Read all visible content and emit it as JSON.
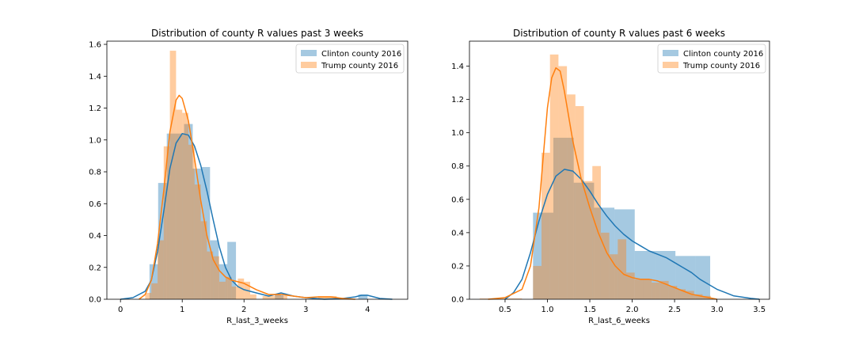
{
  "chart_data": [
    {
      "type": "histogram+kde",
      "title": "Distribution of county R values past 3 weeks",
      "xlabel": "R_last_3_weeks",
      "ylabel": "",
      "xlim": [
        -0.22,
        4.65
      ],
      "ylim": [
        0,
        1.62
      ],
      "xticks": [
        0,
        1,
        2,
        3,
        4
      ],
      "xtick_labels": [
        "0",
        "1",
        "2",
        "3",
        "4"
      ],
      "yticks": [
        0,
        0.2,
        0.4,
        0.6,
        0.8,
        1.0,
        1.2,
        1.4,
        1.6
      ],
      "ytick_labels": [
        "0.0",
        "0.2",
        "0.4",
        "0.6",
        "0.8",
        "1.0",
        "1.2",
        "1.4",
        "1.6"
      ],
      "legend_position": "top-right",
      "grid": false,
      "series": [
        {
          "name": "Clinton county 2016",
          "color": "#1f77b4",
          "hist_bins": [
            {
              "x0": 0.47,
              "x1": 0.61,
              "y": 0.22
            },
            {
              "x0": 0.61,
              "x1": 0.75,
              "y": 0.73
            },
            {
              "x0": 0.75,
              "x1": 0.89,
              "y": 1.04
            },
            {
              "x0": 0.89,
              "x1": 1.03,
              "y": 1.04
            },
            {
              "x0": 1.03,
              "x1": 1.17,
              "y": 1.1
            },
            {
              "x0": 1.17,
              "x1": 1.31,
              "y": 0.82
            },
            {
              "x0": 1.31,
              "x1": 1.45,
              "y": 0.83
            },
            {
              "x0": 1.45,
              "x1": 1.59,
              "y": 0.37
            },
            {
              "x0": 1.59,
              "x1": 1.73,
              "y": 0.22
            },
            {
              "x0": 1.73,
              "x1": 1.87,
              "y": 0.36
            },
            {
              "x0": 2.5,
              "x1": 2.64,
              "y": 0.03
            },
            {
              "x0": 3.85,
              "x1": 4.0,
              "y": 0.03
            }
          ],
          "kde": {
            "x": [
              0.0,
              0.2,
              0.4,
              0.5,
              0.6,
              0.7,
              0.8,
              0.9,
              1.0,
              1.1,
              1.2,
              1.3,
              1.4,
              1.5,
              1.6,
              1.7,
              1.8,
              1.9,
              2.0,
              2.2,
              2.4,
              2.6,
              2.8,
              3.0,
              3.3,
              3.6,
              3.8,
              3.9,
              4.0,
              4.1,
              4.2,
              4.4
            ],
            "y": [
              0.0,
              0.01,
              0.05,
              0.12,
              0.3,
              0.55,
              0.82,
              0.98,
              1.04,
              1.03,
              0.96,
              0.84,
              0.68,
              0.5,
              0.33,
              0.2,
              0.12,
              0.08,
              0.06,
              0.04,
              0.02,
              0.04,
              0.02,
              0.01,
              0.0,
              0.005,
              0.015,
              0.025,
              0.025,
              0.015,
              0.005,
              0.0
            ]
          }
        },
        {
          "name": "Trump county 2016",
          "color": "#ff7f0e",
          "hist_bins": [
            {
              "x0": 0.4,
              "x1": 0.5,
              "y": 0.04
            },
            {
              "x0": 0.5,
              "x1": 0.6,
              "y": 0.1
            },
            {
              "x0": 0.6,
              "x1": 0.7,
              "y": 0.37
            },
            {
              "x0": 0.7,
              "x1": 0.8,
              "y": 0.96
            },
            {
              "x0": 0.8,
              "x1": 0.9,
              "y": 1.56
            },
            {
              "x0": 0.9,
              "x1": 1.0,
              "y": 1.19
            },
            {
              "x0": 1.0,
              "x1": 1.1,
              "y": 1.17
            },
            {
              "x0": 1.1,
              "x1": 1.2,
              "y": 0.97
            },
            {
              "x0": 1.2,
              "x1": 1.3,
              "y": 0.72
            },
            {
              "x0": 1.3,
              "x1": 1.4,
              "y": 0.49
            },
            {
              "x0": 1.4,
              "x1": 1.5,
              "y": 0.3
            },
            {
              "x0": 1.5,
              "x1": 1.6,
              "y": 0.27
            },
            {
              "x0": 1.6,
              "x1": 1.7,
              "y": 0.11
            },
            {
              "x0": 1.7,
              "x1": 1.8,
              "y": 0.14
            },
            {
              "x0": 1.8,
              "x1": 1.9,
              "y": 0.08
            },
            {
              "x0": 1.9,
              "x1": 2.0,
              "y": 0.13
            },
            {
              "x0": 2.0,
              "x1": 2.1,
              "y": 0.11
            },
            {
              "x0": 2.1,
              "x1": 2.2,
              "y": 0.03
            },
            {
              "x0": 2.3,
              "x1": 2.4,
              "y": 0.02
            },
            {
              "x0": 2.4,
              "x1": 2.5,
              "y": 0.02
            },
            {
              "x0": 2.5,
              "x1": 2.6,
              "y": 0.03
            },
            {
              "x0": 2.6,
              "x1": 2.7,
              "y": 0.02
            },
            {
              "x0": 3.2,
              "x1": 3.3,
              "y": 0.02
            },
            {
              "x0": 3.3,
              "x1": 3.4,
              "y": 0.02
            },
            {
              "x0": 3.4,
              "x1": 3.5,
              "y": 0.02
            },
            {
              "x0": 3.5,
              "x1": 3.6,
              "y": 0.01
            }
          ],
          "kde": {
            "x": [
              0.3,
              0.4,
              0.5,
              0.6,
              0.7,
              0.8,
              0.9,
              0.95,
              1.0,
              1.1,
              1.2,
              1.3,
              1.4,
              1.5,
              1.6,
              1.7,
              1.8,
              1.9,
              2.0,
              2.1,
              2.2,
              2.4,
              2.6,
              2.8,
              3.0,
              3.2,
              3.4,
              3.6,
              3.8
            ],
            "y": [
              0.0,
              0.03,
              0.12,
              0.35,
              0.68,
              1.05,
              1.25,
              1.28,
              1.26,
              1.12,
              0.88,
              0.62,
              0.4,
              0.25,
              0.18,
              0.14,
              0.12,
              0.11,
              0.1,
              0.08,
              0.06,
              0.03,
              0.03,
              0.02,
              0.01,
              0.015,
              0.015,
              0.005,
              0.0
            ]
          }
        }
      ]
    },
    {
      "type": "histogram+kde",
      "title": "Distribution of county R values past 6 weeks",
      "xlabel": "R_last_6_weeks",
      "ylabel": "",
      "xlim": [
        0.08,
        3.62
      ],
      "ylim": [
        0,
        1.55
      ],
      "xticks": [
        0.5,
        1.0,
        1.5,
        2.0,
        2.5,
        3.0,
        3.5
      ],
      "xtick_labels": [
        "0.5",
        "1.0",
        "1.5",
        "2.0",
        "2.5",
        "3.0",
        "3.5"
      ],
      "yticks": [
        0,
        0.2,
        0.4,
        0.6,
        0.8,
        1.0,
        1.2,
        1.4
      ],
      "ytick_labels": [
        "0.0",
        "0.2",
        "0.4",
        "0.6",
        "0.8",
        "1.0",
        "1.2",
        "1.4"
      ],
      "legend_position": "top-right",
      "grid": false,
      "series": [
        {
          "name": "Clinton county 2016",
          "color": "#1f77b4",
          "hist_bins": [
            {
              "x0": 0.83,
              "x1": 1.07,
              "y": 0.52
            },
            {
              "x0": 1.07,
              "x1": 1.31,
              "y": 0.97
            },
            {
              "x0": 1.31,
              "x1": 1.55,
              "y": 0.7
            },
            {
              "x0": 1.55,
              "x1": 1.79,
              "y": 0.55
            },
            {
              "x0": 1.79,
              "x1": 2.03,
              "y": 0.54
            },
            {
              "x0": 2.03,
              "x1": 2.27,
              "y": 0.29
            },
            {
              "x0": 2.27,
              "x1": 2.51,
              "y": 0.29
            },
            {
              "x0": 2.51,
              "x1": 2.75,
              "y": 0.26
            },
            {
              "x0": 2.75,
              "x1": 2.92,
              "y": 0.26
            }
          ],
          "kde": {
            "x": [
              0.5,
              0.6,
              0.7,
              0.8,
              0.9,
              1.0,
              1.1,
              1.2,
              1.3,
              1.4,
              1.5,
              1.6,
              1.7,
              1.8,
              1.9,
              2.0,
              2.1,
              2.2,
              2.3,
              2.4,
              2.5,
              2.6,
              2.7,
              2.8,
              2.9,
              3.0,
              3.1,
              3.2,
              3.4,
              3.5
            ],
            "y": [
              0.0,
              0.04,
              0.12,
              0.28,
              0.47,
              0.63,
              0.74,
              0.78,
              0.77,
              0.72,
              0.65,
              0.57,
              0.5,
              0.44,
              0.39,
              0.35,
              0.32,
              0.29,
              0.27,
              0.25,
              0.22,
              0.19,
              0.16,
              0.12,
              0.09,
              0.06,
              0.04,
              0.02,
              0.005,
              0.0
            ]
          }
        },
        {
          "name": "Trump county 2016",
          "color": "#ff7f0e",
          "hist_bins": [
            {
              "x0": 0.2,
              "x1": 0.7,
              "y": 0.005
            },
            {
              "x0": 0.83,
              "x1": 0.93,
              "y": 0.2
            },
            {
              "x0": 0.93,
              "x1": 1.03,
              "y": 0.88
            },
            {
              "x0": 1.03,
              "x1": 1.13,
              "y": 1.47
            },
            {
              "x0": 1.13,
              "x1": 1.23,
              "y": 1.4
            },
            {
              "x0": 1.23,
              "x1": 1.33,
              "y": 1.23
            },
            {
              "x0": 1.33,
              "x1": 1.43,
              "y": 1.16
            },
            {
              "x0": 1.43,
              "x1": 1.53,
              "y": 0.71
            },
            {
              "x0": 1.53,
              "x1": 1.63,
              "y": 0.8
            },
            {
              "x0": 1.63,
              "x1": 1.73,
              "y": 0.4
            },
            {
              "x0": 1.73,
              "x1": 1.83,
              "y": 0.27
            },
            {
              "x0": 1.83,
              "x1": 1.93,
              "y": 0.36
            },
            {
              "x0": 1.93,
              "x1": 2.03,
              "y": 0.16
            },
            {
              "x0": 2.03,
              "x1": 2.13,
              "y": 0.12
            },
            {
              "x0": 2.13,
              "x1": 2.23,
              "y": 0.12
            },
            {
              "x0": 2.23,
              "x1": 2.33,
              "y": 0.1
            },
            {
              "x0": 2.33,
              "x1": 2.43,
              "y": 0.11
            },
            {
              "x0": 2.43,
              "x1": 2.53,
              "y": 0.08
            },
            {
              "x0": 2.53,
              "x1": 2.63,
              "y": 0.06
            },
            {
              "x0": 2.63,
              "x1": 2.73,
              "y": 0.05
            },
            {
              "x0": 2.73,
              "x1": 2.83,
              "y": 0.03
            },
            {
              "x0": 2.83,
              "x1": 2.93,
              "y": 0.02
            }
          ],
          "kde": {
            "x": [
              0.3,
              0.5,
              0.7,
              0.8,
              0.9,
              0.95,
              1.0,
              1.05,
              1.1,
              1.15,
              1.2,
              1.3,
              1.4,
              1.5,
              1.6,
              1.7,
              1.8,
              1.9,
              2.0,
              2.1,
              2.2,
              2.3,
              2.4,
              2.5,
              2.6,
              2.7,
              2.8,
              2.9,
              3.0
            ],
            "y": [
              0.0,
              0.01,
              0.06,
              0.2,
              0.55,
              0.85,
              1.15,
              1.33,
              1.39,
              1.37,
              1.25,
              0.95,
              0.72,
              0.55,
              0.4,
              0.28,
              0.2,
              0.15,
              0.13,
              0.12,
              0.12,
              0.11,
              0.09,
              0.07,
              0.05,
              0.03,
              0.02,
              0.01,
              0.0
            ]
          }
        }
      ]
    }
  ]
}
